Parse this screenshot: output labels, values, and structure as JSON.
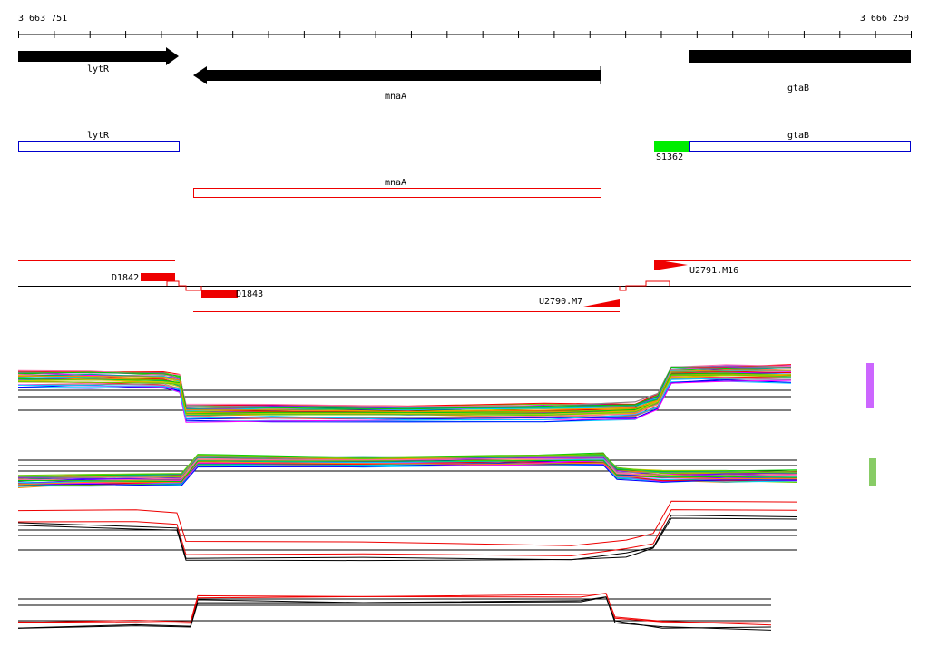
{
  "ruler": {
    "start": "3 663 751",
    "end": "3 666 250"
  },
  "genes": [
    {
      "label": "lytR"
    },
    {
      "label": "mnaA"
    },
    {
      "label": "gtaB"
    }
  ],
  "annotations": [
    {
      "label": "lytR"
    },
    {
      "label": "mnaA"
    },
    {
      "label": "gtaB"
    },
    {
      "label": "S1362"
    }
  ],
  "segments": [
    {
      "label": "D1842"
    },
    {
      "label": "D1843"
    },
    {
      "label": "U2790.M7"
    },
    {
      "label": "U2791.M16"
    }
  ]
}
